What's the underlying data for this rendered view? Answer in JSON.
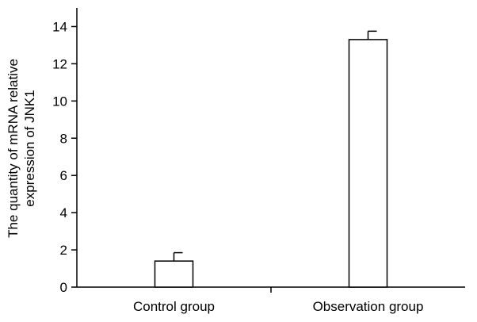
{
  "chart_data": {
    "type": "bar",
    "categories": [
      "Control group",
      "Observation group"
    ],
    "values": [
      1.4,
      13.3
    ],
    "errors": [
      0.45,
      0.45
    ],
    "title": "",
    "xlabel": "",
    "ylabel_lines": [
      "The quantity of mRNA relative",
      "expression of JNK1"
    ],
    "ylim": [
      0,
      15
    ],
    "yticks": [
      0,
      2,
      4,
      6,
      8,
      10,
      12,
      14
    ],
    "grid": false,
    "bar_fill": "#ffffff",
    "bar_stroke": "#000000"
  }
}
